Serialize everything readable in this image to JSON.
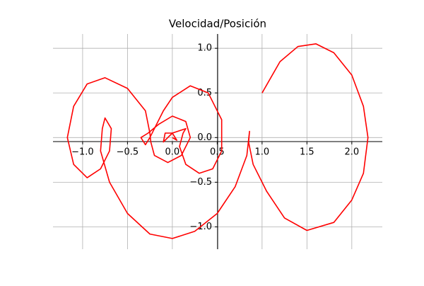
{
  "chart_data": {
    "type": "line",
    "title": "Velocidad/Posición",
    "color": "#ff0000",
    "grid": true,
    "xlim": [
      -1.33,
      2.34
    ],
    "ylim": [
      -1.25,
      1.16
    ],
    "xticks": [
      {
        "value": -1.0,
        "label": "−1.0"
      },
      {
        "value": -0.5,
        "label": "−0.5"
      },
      {
        "value": 0.0,
        "label": "0.0"
      },
      0.5,
      {
        "value": 1.0,
        "label": "1.0"
      },
      1.5,
      {
        "value": 2.0,
        "label": "2.0"
      }
    ],
    "yticks": [
      {
        "value": -1.0,
        "label": "−1.0"
      },
      {
        "value": -0.5,
        "label": "−0.5"
      },
      {
        "value": 0.0,
        "label": "0.0"
      },
      0.5,
      {
        "value": 1.0,
        "label": "1.0"
      }
    ],
    "x": [
      1.0,
      1.2,
      1.4,
      1.6,
      1.8,
      2.0,
      2.13,
      2.18,
      2.13,
      2.0,
      1.8,
      1.5,
      1.25,
      1.05,
      0.9,
      0.85,
      0.86,
      0.83,
      0.7,
      0.5,
      0.25,
      0.0,
      -0.25,
      -0.5,
      -0.7,
      -0.8,
      -0.78,
      -0.75,
      -0.68,
      -0.7,
      -0.8,
      -0.95,
      -1.1,
      -1.17,
      -1.1,
      -0.95,
      -0.75,
      -0.5,
      -0.3,
      -0.25,
      -0.24,
      -0.2,
      -0.05,
      0.1,
      0.2,
      0.15,
      0.0,
      -0.15,
      -0.27,
      -0.35,
      -0.3,
      -0.25,
      -0.1,
      0.0,
      0.2,
      0.4,
      0.55,
      0.55,
      0.45,
      0.3,
      0.15,
      0.08,
      0.12,
      0.15,
      0.0,
      -0.08,
      -0.1,
      -0.05,
      0.0,
      0.05,
      0.0
    ],
    "y": [
      0.5,
      0.85,
      1.02,
      1.05,
      0.95,
      0.7,
      0.35,
      0.0,
      -0.4,
      -0.7,
      -0.95,
      -1.04,
      -0.9,
      -0.6,
      -0.3,
      -0.05,
      0.07,
      -0.2,
      -0.55,
      -0.85,
      -1.05,
      -1.13,
      -1.08,
      -0.85,
      -0.5,
      -0.15,
      0.1,
      0.22,
      0.1,
      -0.15,
      -0.35,
      -0.45,
      -0.3,
      0.0,
      0.35,
      0.6,
      0.67,
      0.55,
      0.3,
      0.05,
      -0.05,
      -0.2,
      -0.28,
      -0.2,
      0.0,
      0.18,
      0.24,
      0.15,
      0.05,
      0.0,
      -0.08,
      0.0,
      0.3,
      0.45,
      0.58,
      0.5,
      0.2,
      -0.15,
      -0.35,
      -0.4,
      -0.3,
      -0.1,
      0.05,
      0.1,
      0.05,
      0.05,
      -0.05,
      0.0,
      0.05,
      -0.03,
      0.0
    ]
  }
}
